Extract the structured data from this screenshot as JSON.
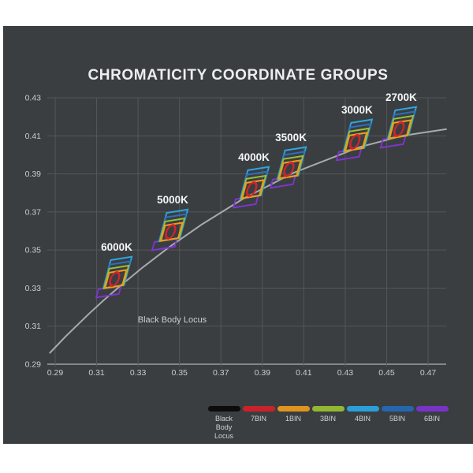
{
  "panel": {
    "title": "CHROMATICITY COORDINATE GROUPS",
    "background": "#3a3e41",
    "title_color": "#eceeee"
  },
  "chart_data": {
    "type": "line",
    "title": "CHROMATICITY COORDINATE GROUPS",
    "xlabel": "",
    "ylabel": "",
    "xlim": [
      0.29,
      0.47
    ],
    "ylim": [
      0.29,
      0.43
    ],
    "x_ticks": [
      0.29,
      0.31,
      0.33,
      0.35,
      0.37,
      0.39,
      0.41,
      0.43,
      0.45,
      0.47
    ],
    "y_ticks": [
      0.29,
      0.31,
      0.33,
      0.35,
      0.37,
      0.39,
      0.41,
      0.43
    ],
    "grid": true,
    "grid_color": "#53575a",
    "axis_color": "#9aa0a2",
    "curve": {
      "name": "Black Body Locus",
      "annotation": "Black Body Locus",
      "annotation_xy": [
        0.3465,
        0.312
      ],
      "color": "#a6abad",
      "points": [
        [
          0.2875,
          0.296
        ],
        [
          0.2952,
          0.3048
        ],
        [
          0.3064,
          0.3166
        ],
        [
          0.3135,
          0.3237
        ],
        [
          0.3221,
          0.3318
        ],
        [
          0.3324,
          0.341
        ],
        [
          0.3451,
          0.3516
        ],
        [
          0.3608,
          0.3635
        ],
        [
          0.3805,
          0.3768
        ],
        [
          0.4053,
          0.3907
        ],
        [
          0.4369,
          0.4041
        ],
        [
          0.4578,
          0.4101
        ],
        [
          0.4787,
          0.4135
        ]
      ]
    },
    "bin_groups": [
      {
        "label": "6000K",
        "cx": 0.3197,
        "cy": 0.336
      },
      {
        "label": "5000K",
        "cx": 0.3467,
        "cy": 0.3608
      },
      {
        "label": "4000K",
        "cx": 0.3859,
        "cy": 0.3832
      },
      {
        "label": "3500K",
        "cx": 0.4038,
        "cy": 0.3936
      },
      {
        "label": "3000K",
        "cx": 0.4357,
        "cy": 0.4081
      },
      {
        "label": "2700K",
        "cx": 0.457,
        "cy": 0.4147
      }
    ],
    "bin_colors": {
      "7BIN": "#d2242b",
      "1BIN": "#f09a1f",
      "3BIN": "#9cc037",
      "4BIN": "#2ea6e0",
      "5BIN": "#2b6fc0",
      "6BIN": "#7e35cf"
    },
    "legend": [
      {
        "label": "Black Body Locus",
        "color": "#0c0c0c"
      },
      {
        "label": "7BIN",
        "color": "#c9222a"
      },
      {
        "label": "1BIN",
        "color": "#df941f"
      },
      {
        "label": "3BIN",
        "color": "#93b733"
      },
      {
        "label": "4BIN",
        "color": "#2b9fd8"
      },
      {
        "label": "5BIN",
        "color": "#2566ae"
      },
      {
        "label": "6BIN",
        "color": "#7a33c8"
      }
    ]
  }
}
